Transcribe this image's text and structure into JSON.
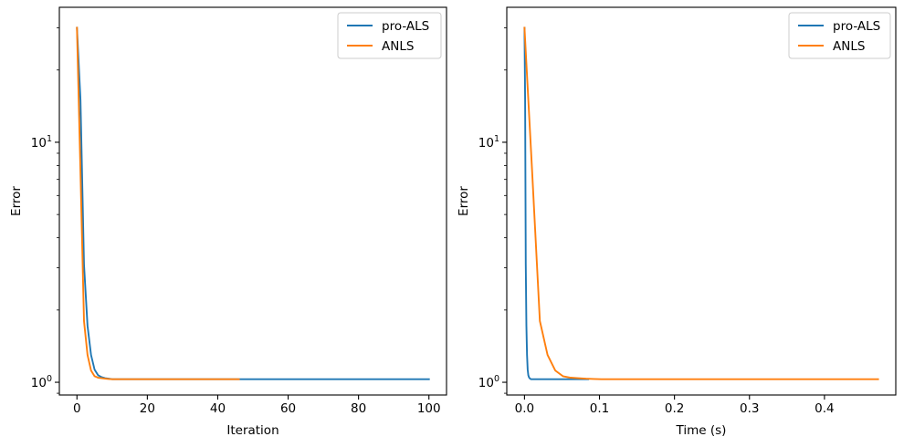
{
  "chart_data": [
    {
      "type": "line",
      "title": "",
      "xlabel": "Iteration",
      "ylabel": "Error",
      "xscale": "linear",
      "yscale": "log",
      "xlim": [
        -5,
        105
      ],
      "ylim": [
        0.885,
        36.5
      ],
      "grid": false,
      "legend": {
        "placement": "upper right"
      },
      "xticks": [
        {
          "value": 0,
          "label": "0"
        },
        {
          "value": 20,
          "label": "20"
        },
        {
          "value": 40,
          "label": "40"
        },
        {
          "value": 60,
          "label": "60"
        },
        {
          "value": 80,
          "label": "80"
        },
        {
          "value": 100,
          "label": "100"
        }
      ],
      "yticks": [
        {
          "value": 1,
          "base": "10",
          "exp": "0"
        },
        {
          "value": 10,
          "base": "10",
          "exp": "1"
        }
      ],
      "y_minor_ticks": [
        0.9,
        2,
        3,
        4,
        5,
        6,
        7,
        8,
        9,
        20,
        30
      ],
      "series": [
        {
          "name": "pro-ALS",
          "color": "#1f77b4",
          "x": [
            0,
            1,
            2,
            3,
            4,
            5,
            6,
            7,
            8,
            9,
            10,
            20,
            30,
            40,
            50,
            60,
            70,
            80,
            90,
            100
          ],
          "y": [
            30,
            15,
            3.1,
            1.72,
            1.3,
            1.13,
            1.07,
            1.05,
            1.04,
            1.035,
            1.03,
            1.03,
            1.03,
            1.03,
            1.03,
            1.03,
            1.03,
            1.03,
            1.03,
            1.03
          ]
        },
        {
          "name": "ANLS",
          "color": "#ff7f0e",
          "x": [
            0,
            1,
            2,
            3,
            4,
            5,
            6,
            7,
            8,
            9,
            10,
            20,
            30,
            40,
            46
          ],
          "y": [
            30,
            7.5,
            1.8,
            1.3,
            1.12,
            1.06,
            1.045,
            1.04,
            1.035,
            1.032,
            1.03,
            1.03,
            1.03,
            1.03,
            1.03
          ]
        }
      ]
    },
    {
      "type": "line",
      "title": "",
      "xlabel": "Time (s)",
      "ylabel": "Error",
      "xscale": "linear",
      "yscale": "log",
      "xlim": [
        -0.0236,
        0.4951
      ],
      "ylim": [
        0.885,
        36.5
      ],
      "grid": false,
      "legend": {
        "placement": "upper right"
      },
      "xticks": [
        {
          "value": 0,
          "label": "0.0"
        },
        {
          "value": 0.1,
          "label": "0.1"
        },
        {
          "value": 0.2,
          "label": "0.2"
        },
        {
          "value": 0.3,
          "label": "0.3"
        },
        {
          "value": 0.4,
          "label": "0.4"
        }
      ],
      "yticks": [
        {
          "value": 1,
          "base": "10",
          "exp": "0"
        },
        {
          "value": 10,
          "base": "10",
          "exp": "1"
        }
      ],
      "y_minor_ticks": [
        0.9,
        2,
        3,
        4,
        5,
        6,
        7,
        8,
        9,
        20,
        30
      ],
      "series": [
        {
          "name": "pro-ALS",
          "color": "#1f77b4",
          "x": [
            0,
            0.00085,
            0.0017,
            0.00255,
            0.0034,
            0.00425,
            0.0051,
            0.00595,
            0.0068,
            0.00765,
            0.0085,
            0.085
          ],
          "y": [
            30,
            15,
            3.1,
            1.72,
            1.3,
            1.13,
            1.07,
            1.05,
            1.04,
            1.035,
            1.03,
            1.03
          ]
        },
        {
          "name": "ANLS",
          "color": "#ff7f0e",
          "x": [
            0,
            0.01025,
            0.0205,
            0.03075,
            0.041,
            0.05125,
            0.0615,
            0.07175,
            0.082,
            0.09225,
            0.1025,
            0.205,
            0.3075,
            0.41,
            0.4715
          ],
          "y": [
            30,
            7.5,
            1.8,
            1.3,
            1.12,
            1.06,
            1.045,
            1.04,
            1.035,
            1.032,
            1.03,
            1.03,
            1.03,
            1.03,
            1.03
          ]
        }
      ]
    }
  ]
}
